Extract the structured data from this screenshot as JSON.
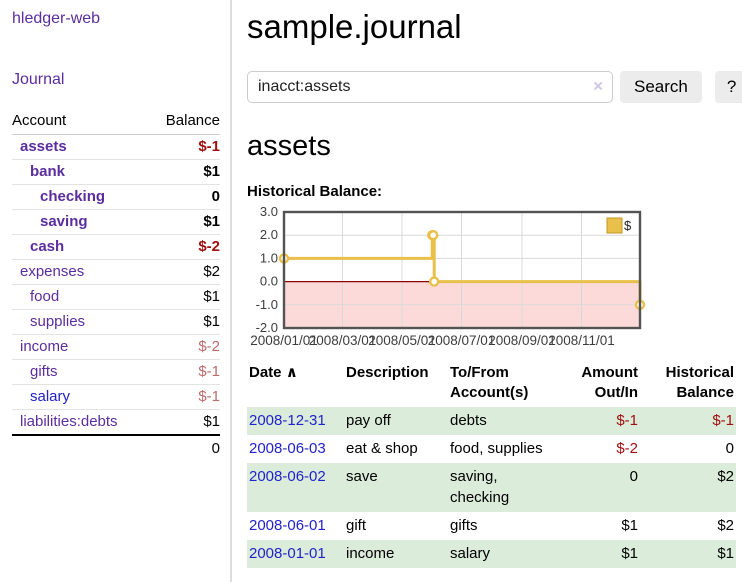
{
  "app": {
    "title": "hledger-web"
  },
  "colors": {
    "link_purple": "#5b2d9e",
    "link_blue": "#2222cc",
    "negative_strong": "#a01010",
    "negative_soft": "#bd6a6a",
    "row_stripe_green": "#dbecdb",
    "chart_gold": "#e8c04a",
    "chart_negative_region": "#fcdada",
    "chart_zero_line": "#8d0000"
  },
  "sidebar": {
    "journal_link": "Journal",
    "table": {
      "headers": {
        "account": "Account",
        "balance": "Balance"
      },
      "rows": [
        {
          "account": "assets",
          "balance": "$-1",
          "indent": 1,
          "bold": true,
          "link": "purple",
          "balance_class": "neg-strong"
        },
        {
          "account": "bank",
          "balance": "$1",
          "indent": 2,
          "bold": true,
          "link": "purple",
          "balance_class": ""
        },
        {
          "account": "checking",
          "balance": "0",
          "indent": 3,
          "bold": true,
          "link": "purple",
          "balance_class": ""
        },
        {
          "account": "saving",
          "balance": "$1",
          "indent": 3,
          "bold": true,
          "link": "purple",
          "balance_class": ""
        },
        {
          "account": "cash",
          "balance": "$-2",
          "indent": 2,
          "bold": true,
          "link": "purple",
          "balance_class": "neg-strong"
        },
        {
          "account": "expenses",
          "balance": "$2",
          "indent": 1,
          "bold": false,
          "link": "purple",
          "balance_class": ""
        },
        {
          "account": "food",
          "balance": "$1",
          "indent": 2,
          "bold": false,
          "link": "purple",
          "balance_class": ""
        },
        {
          "account": "supplies",
          "balance": "$1",
          "indent": 2,
          "bold": false,
          "link": "purple",
          "balance_class": ""
        },
        {
          "account": "income",
          "balance": "$-2",
          "indent": 1,
          "bold": false,
          "link": "purple",
          "balance_class": "neg-soft"
        },
        {
          "account": "gifts",
          "balance": "$-1",
          "indent": 2,
          "bold": false,
          "link": "purple",
          "balance_class": "neg-soft"
        },
        {
          "account": "salary",
          "balance": "$-1",
          "indent": 2,
          "bold": false,
          "link": "blue",
          "balance_class": "neg-soft"
        },
        {
          "account": "liabilities:debts",
          "balance": "$1",
          "indent": 1,
          "bold": false,
          "link": "purple",
          "balance_class": ""
        }
      ],
      "total": "0"
    }
  },
  "main": {
    "title": "sample.journal",
    "search": {
      "value": "inacct:assets",
      "clear_icon": "×",
      "button": "Search",
      "help_button": "?"
    },
    "account_heading": "assets",
    "chart_label": "Historical Balance:"
  },
  "chart_data": {
    "type": "line",
    "title": "Historical Balance:",
    "step": true,
    "ylim": [
      -2,
      3
    ],
    "xlim": [
      "2008-01-01",
      "2008-12-31"
    ],
    "y_ticks": [
      "3.0",
      "2.0",
      "1.0",
      "0.0",
      "-1.0",
      "-2.0"
    ],
    "x_ticks": [
      {
        "date": "2008-01-01",
        "label": "2008/01/01"
      },
      {
        "date": "2008-03-01",
        "label": "2008/03/01"
      },
      {
        "date": "2008-05-01",
        "label": "2008/05/01"
      },
      {
        "date": "2008-07-01",
        "label": "2008/07/01"
      },
      {
        "date": "2008-09-01",
        "label": "2008/09/01"
      },
      {
        "date": "2008-11-01",
        "label": "2008/11/01"
      }
    ],
    "series": [
      {
        "name": "$",
        "color": "#e8c04a",
        "points": [
          [
            "2008-01-01",
            1
          ],
          [
            "2008-06-01",
            2
          ],
          [
            "2008-06-02",
            2
          ],
          [
            "2008-06-03",
            0
          ],
          [
            "2008-12-31",
            -1
          ]
        ]
      }
    ],
    "legend": {
      "label": "$",
      "position": "top-right"
    },
    "grid": true,
    "negative_region_color": "#fcdada",
    "zero_line_color": "#8d0000"
  },
  "register": {
    "headers": {
      "date": "Date",
      "sort_icon": "∧",
      "description": "Description",
      "accounts": "To/From Account(s)",
      "amount": "Amount Out/In",
      "balance": "Historical Balance"
    },
    "rows": [
      {
        "date": "2008-12-31",
        "description": "pay off",
        "accounts": "debts",
        "amount": "$-1",
        "balance": "$-1",
        "amount_class": "neg-strong",
        "balance_class": "neg-strong"
      },
      {
        "date": "2008-06-03",
        "description": "eat & shop",
        "accounts": "food, supplies",
        "amount": "$-2",
        "balance": "0",
        "amount_class": "neg-strong",
        "balance_class": ""
      },
      {
        "date": "2008-06-02",
        "description": "save",
        "accounts": "saving, checking",
        "amount": "0",
        "balance": "$2",
        "amount_class": "",
        "balance_class": ""
      },
      {
        "date": "2008-06-01",
        "description": "gift",
        "accounts": "gifts",
        "amount": "$1",
        "balance": "$2",
        "amount_class": "",
        "balance_class": ""
      },
      {
        "date": "2008-01-01",
        "description": "income",
        "accounts": "salary",
        "amount": "$1",
        "balance": "$1",
        "amount_class": "",
        "balance_class": ""
      }
    ]
  }
}
